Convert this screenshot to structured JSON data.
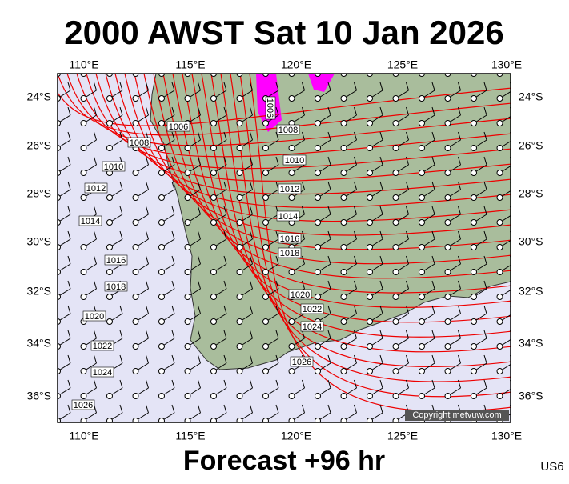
{
  "header": {
    "title": "2000 AWST Sat 10 Jan 2026"
  },
  "longitude_labels": [
    "110°E",
    "115°E",
    "120°E",
    "125°E",
    "130°E"
  ],
  "latitude_labels": [
    "24°S",
    "26°S",
    "28°S",
    "30°S",
    "32°S",
    "34°S",
    "36°S"
  ],
  "isobar_labels": [
    "1006",
    "1008",
    "1010",
    "1012",
    "1014",
    "1016",
    "1018",
    "1020",
    "1022",
    "1024",
    "1026",
    "1008",
    "1010",
    "1012",
    "1014",
    "1016",
    "1018",
    "1020",
    "1022",
    "1024",
    "1026",
    "1006"
  ],
  "copyright": "Copyright metvuw.com",
  "footer": {
    "forecast": "Forecast +96 hr",
    "code": "US6"
  }
}
